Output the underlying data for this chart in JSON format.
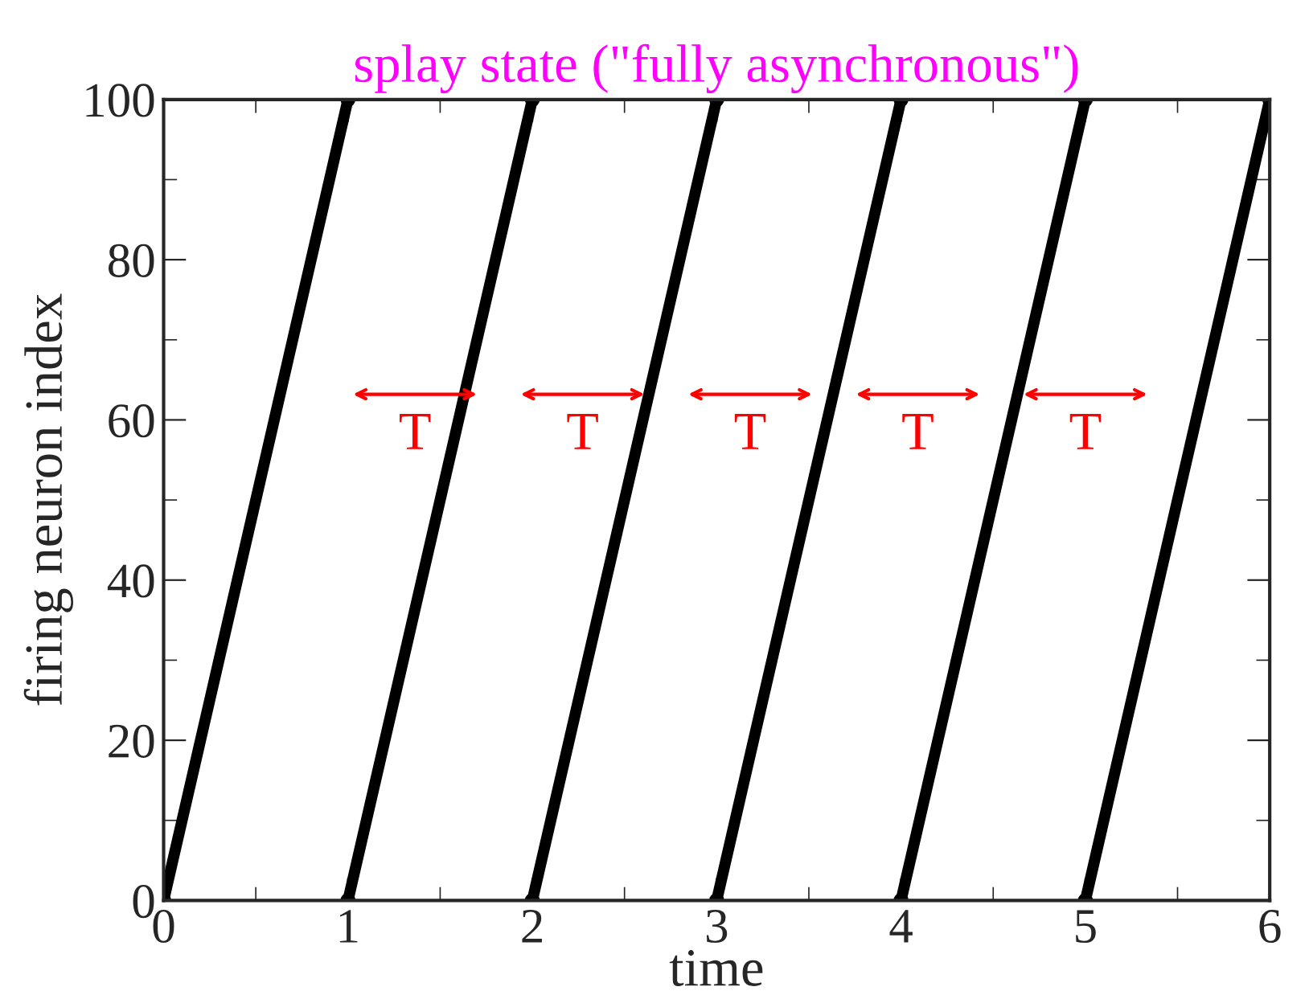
{
  "chart_data": {
    "type": "line",
    "title": "splay state (\"fully asynchronous\")",
    "xlabel": "time",
    "ylabel": "firing neuron index",
    "series": [
      {
        "color": "#000000",
        "x": [
          0,
          1
        ],
        "values": [
          0,
          100
        ]
      },
      {
        "color": "#000000",
        "x": [
          1,
          2
        ],
        "values": [
          0,
          100
        ]
      },
      {
        "color": "#000000",
        "x": [
          2,
          3
        ],
        "values": [
          0,
          100
        ]
      },
      {
        "color": "#000000",
        "x": [
          3,
          4
        ],
        "values": [
          0,
          100
        ]
      },
      {
        "color": "#000000",
        "x": [
          4,
          5
        ],
        "values": [
          0,
          100
        ]
      },
      {
        "color": "#000000",
        "x": [
          5,
          6
        ],
        "values": [
          0,
          100
        ]
      }
    ],
    "annotations": [
      "T",
      "T",
      "T",
      "T",
      "T"
    ],
    "xlim": [
      0,
      6
    ],
    "xticks": [
      0,
      1,
      2,
      3,
      4,
      5,
      6
    ],
    "ylim": [
      0,
      100
    ],
    "yticks": [
      0,
      20,
      40,
      60,
      80,
      100
    ],
    "marker": "circle",
    "line_style": "solid",
    "grid": false,
    "legend": false
  }
}
